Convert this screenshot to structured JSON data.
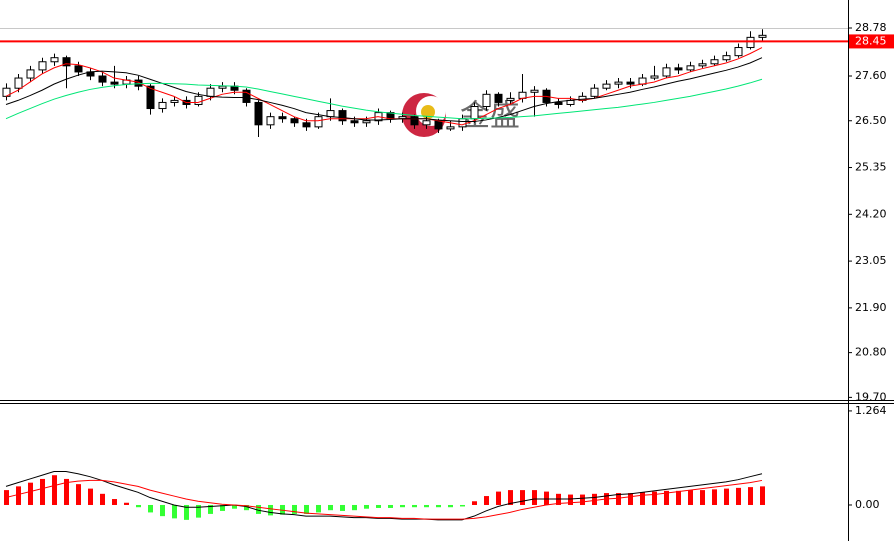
{
  "chart_data": [
    {
      "type": "candlestick",
      "watermark": "金盛",
      "ylim": [
        19.66,
        28.78
      ],
      "yticks": [
        28.78,
        {
          "value": 27.6,
          "label": "27.60"
        },
        {
          "value": 26.5,
          "label": "26.50"
        },
        25.35,
        {
          "value": 24.2,
          "label": "24.20"
        },
        23.05,
        {
          "value": 21.9,
          "label": "21.90"
        },
        {
          "value": 20.8,
          "label": "20.80"
        },
        {
          "value": 19.7,
          "label": "19.70"
        }
      ],
      "current_price": 28.45,
      "current_price_color": "#ff0000",
      "up_color": "#ffffff",
      "down_color": "#000000",
      "wick_color": "#000000",
      "open": [
        27.1,
        27.3,
        27.55,
        27.75,
        27.95,
        28.05,
        27.85,
        27.7,
        27.6,
        27.45,
        27.4,
        27.5,
        27.35,
        26.8,
        26.95,
        27.0,
        26.9,
        27.1,
        27.3,
        27.35,
        27.25,
        26.95,
        26.4,
        26.6,
        26.55,
        26.45,
        26.35,
        26.6,
        26.75,
        26.5,
        26.45,
        26.5,
        26.7,
        26.55,
        26.6,
        26.4,
        26.5,
        26.3,
        26.35,
        26.55,
        26.85,
        27.15,
        27.0,
        27.05,
        27.2,
        27.25,
        26.95,
        26.9,
        27.0,
        27.1,
        27.3,
        27.4,
        27.45,
        27.4,
        27.55,
        27.6,
        27.8,
        27.75,
        27.85,
        27.9,
        28.0,
        28.1,
        28.3,
        28.55
      ],
      "high": [
        27.42,
        27.65,
        27.85,
        28.05,
        28.15,
        28.1,
        27.95,
        27.8,
        27.7,
        27.85,
        27.6,
        27.6,
        27.4,
        27.05,
        27.1,
        27.1,
        27.2,
        27.4,
        27.45,
        27.45,
        27.3,
        27.0,
        26.7,
        26.7,
        26.6,
        26.55,
        26.7,
        27.05,
        26.8,
        26.6,
        26.6,
        26.8,
        26.75,
        26.7,
        26.65,
        26.6,
        26.55,
        26.5,
        26.65,
        26.95,
        27.25,
        27.2,
        27.2,
        27.65,
        27.35,
        27.3,
        27.05,
        27.1,
        27.2,
        27.4,
        27.5,
        27.55,
        27.55,
        27.65,
        27.85,
        27.9,
        27.9,
        27.95,
        28.0,
        28.1,
        28.2,
        28.4,
        28.7,
        28.75
      ],
      "low": [
        27.0,
        27.2,
        27.45,
        27.65,
        27.85,
        27.3,
        27.6,
        27.5,
        27.35,
        27.3,
        27.3,
        27.25,
        26.65,
        26.7,
        26.85,
        26.8,
        26.85,
        27.0,
        27.2,
        27.15,
        26.85,
        26.1,
        26.3,
        26.45,
        26.35,
        26.25,
        26.3,
        26.5,
        26.4,
        26.35,
        26.35,
        26.4,
        26.45,
        26.45,
        26.3,
        26.3,
        26.2,
        26.25,
        26.25,
        26.45,
        26.75,
        26.85,
        26.9,
        26.95,
        26.6,
        26.85,
        26.8,
        26.85,
        26.95,
        27.05,
        27.25,
        27.3,
        27.3,
        27.35,
        27.5,
        27.55,
        27.65,
        27.7,
        27.8,
        27.85,
        27.95,
        28.05,
        28.25,
        28.45
      ],
      "close": [
        27.3,
        27.55,
        27.75,
        27.95,
        28.05,
        27.85,
        27.7,
        27.6,
        27.45,
        27.4,
        27.5,
        27.35,
        26.8,
        26.95,
        27.0,
        26.9,
        27.1,
        27.3,
        27.35,
        27.25,
        26.95,
        26.4,
        26.6,
        26.55,
        26.45,
        26.35,
        26.6,
        26.75,
        26.5,
        26.45,
        26.5,
        26.7,
        26.55,
        26.6,
        26.4,
        26.5,
        26.3,
        26.35,
        26.55,
        26.85,
        27.15,
        26.95,
        27.05,
        27.2,
        27.25,
        26.95,
        26.9,
        27.0,
        27.1,
        27.3,
        27.4,
        27.45,
        27.4,
        27.55,
        27.6,
        27.8,
        27.75,
        27.85,
        27.9,
        28.0,
        28.1,
        28.3,
        28.55,
        28.6
      ],
      "ma": [
        {
          "color": "#ff0000",
          "values": [
            27.1,
            27.25,
            27.45,
            27.65,
            27.8,
            27.9,
            27.88,
            27.8,
            27.7,
            27.55,
            27.5,
            27.45,
            27.3,
            27.2,
            27.1,
            26.95,
            26.95,
            27.05,
            27.15,
            27.2,
            27.2,
            27.05,
            26.9,
            26.75,
            26.6,
            26.5,
            26.5,
            26.55,
            26.55,
            26.55,
            26.55,
            26.6,
            26.55,
            26.55,
            26.55,
            26.55,
            26.5,
            26.45,
            26.4,
            26.5,
            26.65,
            26.8,
            26.9,
            27.05,
            27.1,
            27.1,
            27.05,
            27.05,
            27.0,
            27.05,
            27.15,
            27.25,
            27.35,
            27.4,
            27.45,
            27.55,
            27.6,
            27.7,
            27.78,
            27.85,
            27.92,
            28.02,
            28.15,
            28.3
          ]
        },
        {
          "color": "#000000",
          "values": [
            26.9,
            27.0,
            27.12,
            27.25,
            27.4,
            27.52,
            27.62,
            27.7,
            27.72,
            27.7,
            27.68,
            27.62,
            27.52,
            27.42,
            27.32,
            27.22,
            27.15,
            27.1,
            27.08,
            27.07,
            27.07,
            27.02,
            26.95,
            26.88,
            26.8,
            26.7,
            26.65,
            26.6,
            26.58,
            26.55,
            26.52,
            26.52,
            26.53,
            26.55,
            26.55,
            26.55,
            26.52,
            26.5,
            26.48,
            26.48,
            26.52,
            26.58,
            26.65,
            26.75,
            26.85,
            26.92,
            26.97,
            27.0,
            27.03,
            27.05,
            27.1,
            27.15,
            27.2,
            27.27,
            27.33,
            27.4,
            27.47,
            27.53,
            27.6,
            27.67,
            27.74,
            27.82,
            27.92,
            28.05
          ]
        },
        {
          "color": "#00e676",
          "values": [
            26.55,
            26.68,
            26.8,
            26.92,
            27.03,
            27.12,
            27.2,
            27.27,
            27.32,
            27.36,
            27.39,
            27.41,
            27.42,
            27.42,
            27.41,
            27.4,
            27.38,
            27.37,
            27.36,
            27.35,
            27.33,
            27.28,
            27.22,
            27.16,
            27.1,
            27.04,
            26.98,
            26.92,
            26.86,
            26.81,
            26.76,
            26.72,
            26.69,
            26.66,
            26.63,
            26.61,
            26.59,
            26.57,
            26.55,
            26.55,
            26.56,
            26.57,
            26.58,
            26.6,
            26.62,
            26.65,
            26.68,
            26.71,
            26.74,
            26.77,
            26.8,
            26.83,
            26.87,
            26.91,
            26.95,
            27.0,
            27.05,
            27.1,
            27.16,
            27.22,
            27.28,
            27.35,
            27.43,
            27.52
          ]
        }
      ]
    },
    {
      "type": "macd",
      "ylim": [
        -0.484,
        1.357
      ],
      "yticks": [
        1.264,
        {
          "value": 0,
          "label": "0.00"
        }
      ],
      "pos_color": "#ff0000",
      "neg_color": "#33ff33",
      "histogram": [
        0.2,
        0.25,
        0.3,
        0.35,
        0.4,
        0.35,
        0.28,
        0.22,
        0.15,
        0.08,
        0.03,
        -0.03,
        -0.1,
        -0.15,
        -0.18,
        -0.2,
        -0.17,
        -0.12,
        -0.08,
        -0.05,
        -0.07,
        -0.12,
        -0.14,
        -0.13,
        -0.12,
        -0.12,
        -0.1,
        -0.07,
        -0.08,
        -0.07,
        -0.05,
        -0.04,
        -0.04,
        -0.03,
        -0.03,
        -0.03,
        -0.03,
        -0.03,
        -0.02,
        0.05,
        0.12,
        0.18,
        0.2,
        0.2,
        0.2,
        0.18,
        0.15,
        0.14,
        0.14,
        0.15,
        0.16,
        0.16,
        0.16,
        0.17,
        0.18,
        0.19,
        0.19,
        0.2,
        0.2,
        0.21,
        0.22,
        0.23,
        0.24,
        0.25
      ],
      "lines": [
        {
          "color": "#000000",
          "values": [
            0.25,
            0.3,
            0.35,
            0.4,
            0.45,
            0.45,
            0.42,
            0.38,
            0.33,
            0.27,
            0.22,
            0.17,
            0.1,
            0.05,
            0.0,
            -0.03,
            -0.03,
            -0.02,
            -0.01,
            0.0,
            -0.02,
            -0.07,
            -0.1,
            -0.12,
            -0.13,
            -0.15,
            -0.15,
            -0.15,
            -0.16,
            -0.17,
            -0.17,
            -0.18,
            -0.18,
            -0.19,
            -0.19,
            -0.19,
            -0.2,
            -0.2,
            -0.2,
            -0.15,
            -0.08,
            -0.02,
            0.02,
            0.05,
            0.08,
            0.08,
            0.08,
            0.08,
            0.09,
            0.1,
            0.12,
            0.14,
            0.15,
            0.17,
            0.19,
            0.21,
            0.23,
            0.25,
            0.27,
            0.29,
            0.31,
            0.34,
            0.38,
            0.42
          ]
        },
        {
          "color": "#ff0000",
          "values": [
            0.1,
            0.14,
            0.18,
            0.22,
            0.26,
            0.3,
            0.32,
            0.33,
            0.33,
            0.31,
            0.28,
            0.25,
            0.2,
            0.16,
            0.12,
            0.08,
            0.05,
            0.03,
            0.01,
            0.0,
            -0.01,
            -0.03,
            -0.05,
            -0.07,
            -0.09,
            -0.11,
            -0.12,
            -0.13,
            -0.14,
            -0.15,
            -0.16,
            -0.17,
            -0.17,
            -0.18,
            -0.18,
            -0.19,
            -0.19,
            -0.19,
            -0.19,
            -0.18,
            -0.16,
            -0.13,
            -0.1,
            -0.06,
            -0.03,
            0.0,
            0.02,
            0.03,
            0.04,
            0.06,
            0.08,
            0.09,
            0.11,
            0.13,
            0.14,
            0.16,
            0.18,
            0.2,
            0.22,
            0.24,
            0.26,
            0.28,
            0.3,
            0.33
          ]
        }
      ]
    }
  ]
}
